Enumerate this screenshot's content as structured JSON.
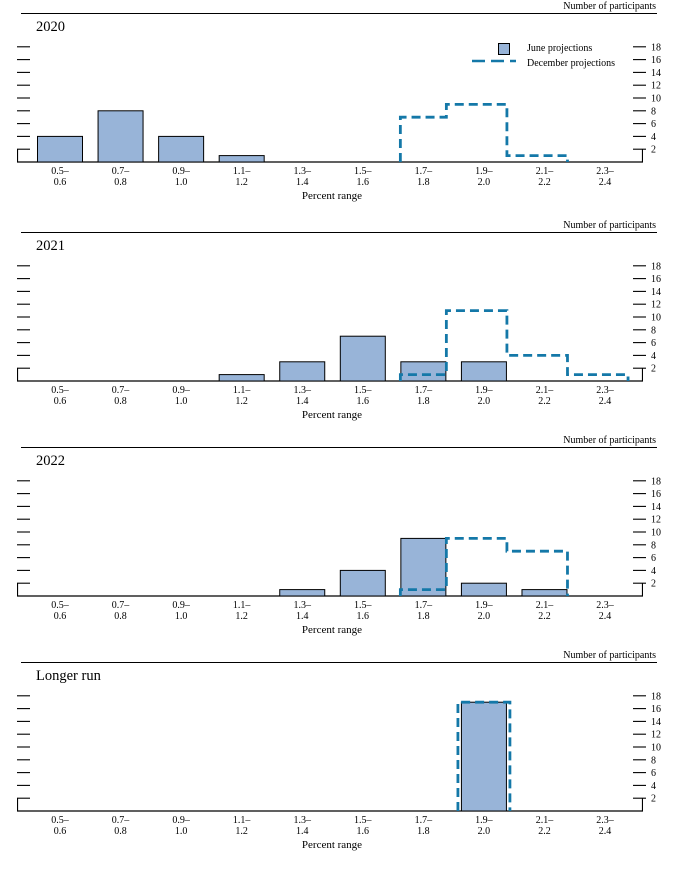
{
  "figure": {
    "right_axis_label": "Number of participants",
    "x_axis_label": "Percent range",
    "legend": {
      "june": "June projections",
      "december": "December projections"
    },
    "colors": {
      "bar_fill": "#98b4d8",
      "bar_stroke": "#000000",
      "december_line": "#1478a8",
      "axis": "#000000"
    },
    "y_ticks": [
      2,
      4,
      6,
      8,
      10,
      12,
      14,
      16,
      18
    ],
    "categories": [
      [
        "0.5–",
        "0.6"
      ],
      [
        "0.7–",
        "0.8"
      ],
      [
        "0.9–",
        "1.0"
      ],
      [
        "1.1–",
        "1.2"
      ],
      [
        "1.3–",
        "1.4"
      ],
      [
        "1.5–",
        "1.6"
      ],
      [
        "1.7–",
        "1.8"
      ],
      [
        "1.9–",
        "2.0"
      ],
      [
        "2.1–",
        "2.2"
      ],
      [
        "2.3–",
        "2.4"
      ]
    ],
    "panels": [
      {
        "title": "2020",
        "june": [
          4,
          8,
          4,
          1,
          0,
          0,
          0,
          0,
          0,
          0
        ],
        "december": [
          0,
          0,
          0,
          0,
          0,
          0,
          7,
          9,
          1,
          0
        ]
      },
      {
        "title": "2021",
        "june": [
          0,
          0,
          0,
          1,
          3,
          7,
          3,
          3,
          0,
          0
        ],
        "december": [
          0,
          0,
          0,
          0,
          0,
          0,
          1,
          11,
          4,
          1
        ]
      },
      {
        "title": "2022",
        "june": [
          0,
          0,
          0,
          0,
          1,
          4,
          9,
          2,
          1,
          0
        ],
        "december": [
          0,
          0,
          0,
          0,
          0,
          0,
          1,
          9,
          7,
          0
        ]
      },
      {
        "title": "Longer run",
        "june": [
          0,
          0,
          0,
          0,
          0,
          0,
          0,
          17,
          0,
          0
        ],
        "december": [
          0,
          0,
          0,
          0,
          0,
          0,
          0,
          17,
          0,
          0
        ]
      }
    ]
  },
  "chart_data": [
    {
      "type": "bar",
      "title": "2020",
      "categories": [
        "0.5–0.6",
        "0.7–0.8",
        "0.9–1.0",
        "1.1–1.2",
        "1.3–1.4",
        "1.5–1.6",
        "1.7–1.8",
        "1.9–2.0",
        "2.1–2.2",
        "2.3–2.4"
      ],
      "series": [
        {
          "name": "June projections",
          "style": "bar",
          "values": [
            4,
            8,
            4,
            1,
            0,
            0,
            0,
            0,
            0,
            0
          ]
        },
        {
          "name": "December projections",
          "style": "dashed-step-outline",
          "values": [
            0,
            0,
            0,
            0,
            0,
            0,
            7,
            9,
            1,
            0
          ]
        }
      ],
      "xlabel": "Percent range",
      "ylabel": "Number of participants",
      "ylim": [
        0,
        19
      ],
      "yticks": [
        2,
        4,
        6,
        8,
        10,
        12,
        14,
        16,
        18
      ],
      "legend_position": "top-right",
      "grid": false
    },
    {
      "type": "bar",
      "title": "2021",
      "categories": [
        "0.5–0.6",
        "0.7–0.8",
        "0.9–1.0",
        "1.1–1.2",
        "1.3–1.4",
        "1.5–1.6",
        "1.7–1.8",
        "1.9–2.0",
        "2.1–2.2",
        "2.3–2.4"
      ],
      "series": [
        {
          "name": "June projections",
          "style": "bar",
          "values": [
            0,
            0,
            0,
            1,
            3,
            7,
            3,
            3,
            0,
            0
          ]
        },
        {
          "name": "December projections",
          "style": "dashed-step-outline",
          "values": [
            0,
            0,
            0,
            0,
            0,
            0,
            1,
            11,
            4,
            1
          ]
        }
      ],
      "xlabel": "Percent range",
      "ylabel": "Number of participants",
      "ylim": [
        0,
        19
      ],
      "yticks": [
        2,
        4,
        6,
        8,
        10,
        12,
        14,
        16,
        18
      ],
      "legend_position": "none",
      "grid": false
    },
    {
      "type": "bar",
      "title": "2022",
      "categories": [
        "0.5–0.6",
        "0.7–0.8",
        "0.9–1.0",
        "1.1–1.2",
        "1.3–1.4",
        "1.5–1.6",
        "1.7–1.8",
        "1.9–2.0",
        "2.1–2.2",
        "2.3–2.4"
      ],
      "series": [
        {
          "name": "June projections",
          "style": "bar",
          "values": [
            0,
            0,
            0,
            0,
            1,
            4,
            9,
            2,
            1,
            0
          ]
        },
        {
          "name": "December projections",
          "style": "dashed-step-outline",
          "values": [
            0,
            0,
            0,
            0,
            0,
            0,
            1,
            9,
            7,
            0
          ]
        }
      ],
      "xlabel": "Percent range",
      "ylabel": "Number of participants",
      "ylim": [
        0,
        19
      ],
      "yticks": [
        2,
        4,
        6,
        8,
        10,
        12,
        14,
        16,
        18
      ],
      "legend_position": "none",
      "grid": false
    },
    {
      "type": "bar",
      "title": "Longer run",
      "categories": [
        "0.5–0.6",
        "0.7–0.8",
        "0.9–1.0",
        "1.1–1.2",
        "1.3–1.4",
        "1.5–1.6",
        "1.7–1.8",
        "1.9–2.0",
        "2.1–2.2",
        "2.3–2.4"
      ],
      "series": [
        {
          "name": "June projections",
          "style": "bar",
          "values": [
            0,
            0,
            0,
            0,
            0,
            0,
            0,
            17,
            0,
            0
          ]
        },
        {
          "name": "December projections",
          "style": "dashed-step-outline",
          "values": [
            0,
            0,
            0,
            0,
            0,
            0,
            0,
            17,
            0,
            0
          ]
        }
      ],
      "xlabel": "Percent range",
      "ylabel": "Number of participants",
      "ylim": [
        0,
        19
      ],
      "yticks": [
        2,
        4,
        6,
        8,
        10,
        12,
        14,
        16,
        18
      ],
      "legend_position": "none",
      "grid": false
    }
  ]
}
